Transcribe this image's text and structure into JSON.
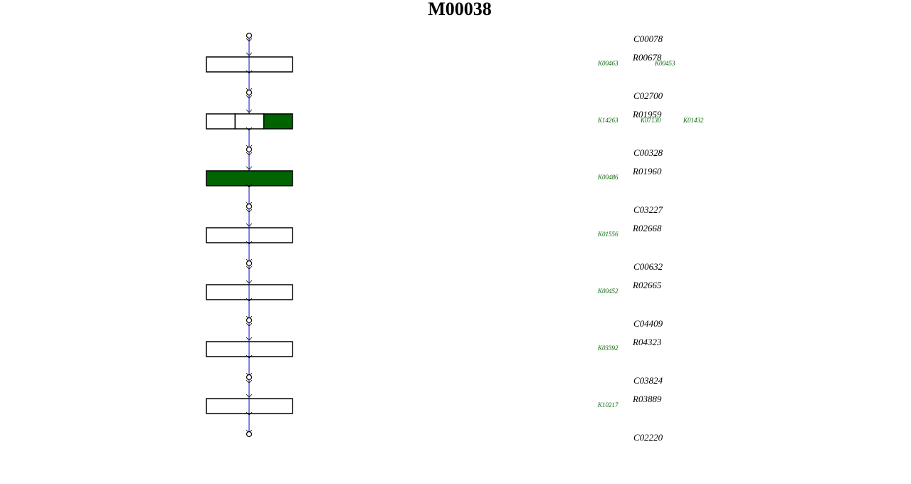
{
  "title": "M00038",
  "compounds": [
    "C00078",
    "C02700",
    "C00328",
    "C03227",
    "C00632",
    "C04409",
    "C03824",
    "C02220"
  ],
  "steps": [
    {
      "reaction": "R00678",
      "kos": [
        "K00463",
        "K00453"
      ],
      "segments": [
        false
      ]
    },
    {
      "reaction": "R01959",
      "kos": [
        "K14263",
        "K07130",
        "K01432"
      ],
      "segments": [
        false,
        false,
        true
      ]
    },
    {
      "reaction": "R01960",
      "kos": [
        "K00486"
      ],
      "segments": [
        true
      ]
    },
    {
      "reaction": "R02668",
      "kos": [
        "K01556"
      ],
      "segments": [
        false
      ]
    },
    {
      "reaction": "R02665",
      "kos": [
        "K00452"
      ],
      "segments": [
        false
      ]
    },
    {
      "reaction": "R04323",
      "kos": [
        "K03392"
      ],
      "segments": [
        false
      ]
    },
    {
      "reaction": "R03889",
      "kos": [
        "K10217"
      ],
      "segments": [
        false
      ]
    }
  ]
}
